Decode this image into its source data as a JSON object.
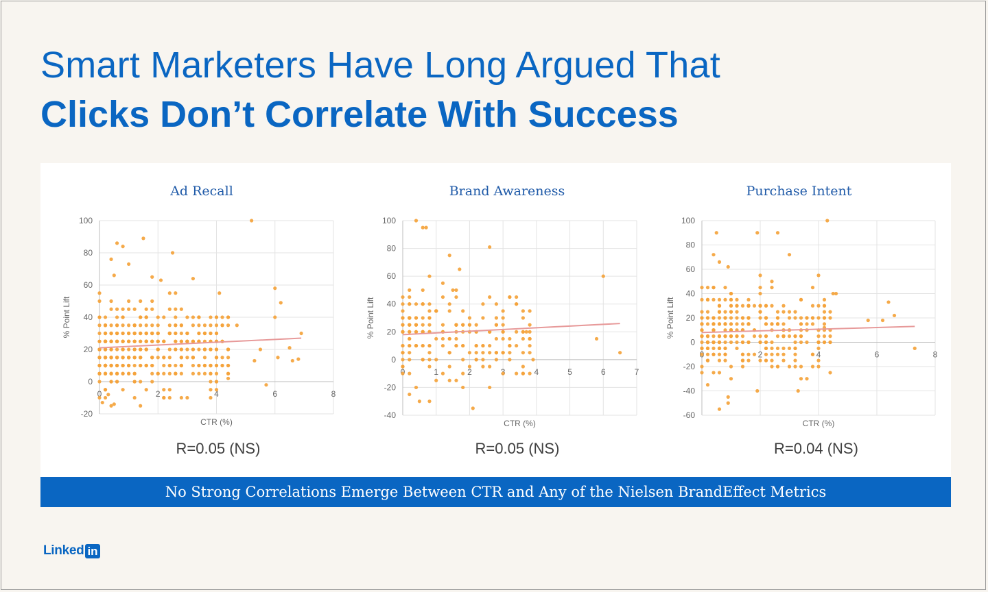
{
  "title_line1": "Smart Marketers Have Long Argued That",
  "title_line2": "Clicks Don’t Correlate With Success",
  "banner_text": "No Strong Correlations Emerge Between CTR and Any of the Nielsen BrandEffect Metrics",
  "logo": {
    "text": "Linked",
    "box": "in"
  },
  "colors": {
    "accent": "#0a66c2",
    "points": "#f4a33b",
    "trend": "#e79a9a",
    "grid": "#e3e3e3"
  },
  "chart_data": [
    {
      "type": "scatter",
      "title": "Ad Recall",
      "xlabel": "CTR (%)",
      "ylabel": "% Point Lift",
      "xlim": [
        0,
        8
      ],
      "ylim": [
        -20,
        100
      ],
      "xticks": [
        0,
        2,
        4,
        6,
        8
      ],
      "yticks": [
        -20,
        0,
        20,
        40,
        60,
        80,
        100
      ],
      "grid": true,
      "annotation": "R=0.05 (NS)",
      "trendline": [
        [
          0,
          21
        ],
        [
          6.9,
          27
        ]
      ],
      "points_seed": 11,
      "points_count": 460,
      "points": [
        [
          5.2,
          100
        ],
        [
          1.5,
          89
        ],
        [
          0.6,
          86
        ],
        [
          0.8,
          84
        ],
        [
          2.5,
          80
        ],
        [
          0.4,
          76
        ],
        [
          1.0,
          73
        ],
        [
          0.5,
          66
        ],
        [
          1.8,
          65
        ],
        [
          3.2,
          64
        ],
        [
          2.1,
          63
        ],
        [
          6.0,
          58
        ],
        [
          4.1,
          55
        ],
        [
          6.2,
          49
        ],
        [
          6.0,
          40
        ],
        [
          4.7,
          35
        ],
        [
          6.9,
          30
        ],
        [
          5.5,
          20
        ],
        [
          6.5,
          21
        ],
        [
          6.1,
          15
        ],
        [
          6.8,
          14
        ],
        [
          5.3,
          13
        ],
        [
          6.6,
          13
        ],
        [
          4.4,
          2
        ],
        [
          5.7,
          -2
        ],
        [
          4.0,
          -5
        ],
        [
          0.3,
          -8
        ],
        [
          0.1,
          -13
        ],
        [
          0.5,
          -14
        ]
      ]
    },
    {
      "type": "scatter",
      "title": "Brand Awareness",
      "xlabel": "CTR (%)",
      "ylabel": "% Point Lift",
      "xlim": [
        0,
        7
      ],
      "ylim": [
        -40,
        100
      ],
      "xticks": [
        0,
        1,
        2,
        3,
        4,
        5,
        6,
        7
      ],
      "yticks": [
        -40,
        -20,
        0,
        20,
        40,
        60,
        80,
        100
      ],
      "grid": true,
      "annotation": "R=0.05 (NS)",
      "trendline": [
        [
          0,
          18
        ],
        [
          6.5,
          26
        ]
      ],
      "points_seed": 23,
      "points_count": 190,
      "points": [
        [
          0.4,
          100
        ],
        [
          0.6,
          95
        ],
        [
          0.7,
          95
        ],
        [
          2.6,
          81
        ],
        [
          1.4,
          75
        ],
        [
          1.7,
          65
        ],
        [
          6.0,
          60
        ],
        [
          0.8,
          60
        ],
        [
          1.2,
          55
        ],
        [
          1.5,
          50
        ],
        [
          2.8,
          40
        ],
        [
          3.4,
          40
        ],
        [
          3.7,
          20
        ],
        [
          5.8,
          15
        ],
        [
          3.2,
          5
        ],
        [
          3.9,
          0
        ],
        [
          6.5,
          5
        ],
        [
          0.2,
          -25
        ],
        [
          0.5,
          -30
        ],
        [
          0.8,
          -30
        ],
        [
          2.1,
          -35
        ],
        [
          2.6,
          -20
        ],
        [
          1.2,
          -10
        ],
        [
          3.4,
          -10
        ],
        [
          3.8,
          -10
        ]
      ]
    },
    {
      "type": "scatter",
      "title": "Purchase Intent",
      "xlabel": "CTR (%)",
      "ylabel": "% Point Lift",
      "xlim": [
        0,
        8
      ],
      "ylim": [
        -60,
        100
      ],
      "xticks": [
        0,
        2,
        4,
        6,
        8
      ],
      "yticks": [
        -60,
        -40,
        -20,
        0,
        20,
        40,
        60,
        80,
        100
      ],
      "grid": true,
      "annotation": "R=0.04 (NS)",
      "trendline": [
        [
          0,
          8
        ],
        [
          7.3,
          13
        ]
      ],
      "points_seed": 37,
      "points_count": 330,
      "points": [
        [
          4.3,
          100
        ],
        [
          0.5,
          90
        ],
        [
          1.9,
          90
        ],
        [
          2.6,
          90
        ],
        [
          0.4,
          72
        ],
        [
          3.0,
          72
        ],
        [
          0.6,
          66
        ],
        [
          0.9,
          62
        ],
        [
          4.0,
          55
        ],
        [
          2.0,
          55
        ],
        [
          4.5,
          40
        ],
        [
          4.6,
          40
        ],
        [
          6.4,
          33
        ],
        [
          6.6,
          22
        ],
        [
          5.7,
          18
        ],
        [
          6.2,
          18
        ],
        [
          3.6,
          20
        ],
        [
          4.2,
          12
        ],
        [
          7.3,
          -5
        ],
        [
          0.9,
          -45
        ],
        [
          0.9,
          -50
        ],
        [
          0.6,
          -55
        ],
        [
          1.9,
          -40
        ],
        [
          3.3,
          -40
        ],
        [
          3.6,
          -30
        ],
        [
          4.0,
          -20
        ]
      ]
    }
  ]
}
